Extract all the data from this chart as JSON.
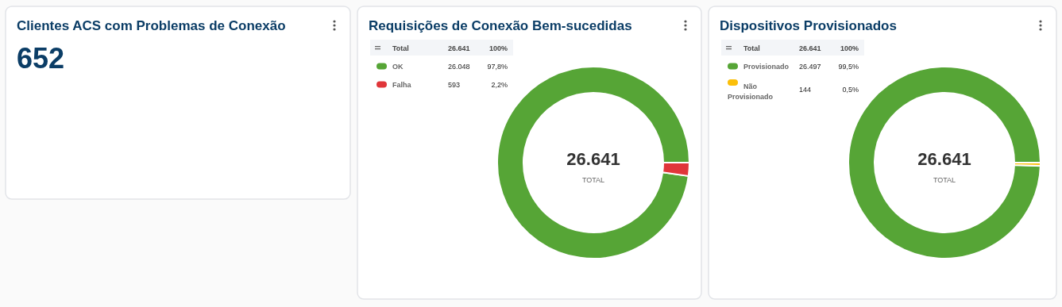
{
  "chart_data": [
    {
      "type": "other",
      "title": "Clientes ACS com Problemas de Conexão",
      "annotations": [
        "652"
      ]
    },
    {
      "type": "donut",
      "title": "Requisições de Conexão Bem-sucedidas",
      "categories": [
        "OK",
        "Falha"
      ],
      "values": [
        26048,
        593
      ],
      "colors": [
        "#56a536",
        "#e0363a"
      ],
      "value_labels": [
        "26.048",
        "593"
      ],
      "legend": "top left",
      "annotations": [
        "Total",
        "26.641",
        "100%",
        "TOTAL",
        "97,8%",
        "2,2%"
      ]
    },
    {
      "type": "donut",
      "title": "Dispositivos Provisionados",
      "categories": [
        "Provisionado",
        "Não Provisionado"
      ],
      "values": [
        26497,
        144
      ],
      "colors": [
        "#56a536",
        "#fbbf0a"
      ],
      "value_labels": [
        "26.497",
        "144"
      ],
      "legend": "top left",
      "annotations": [
        "Total",
        "26.641",
        "100%",
        "TOTAL",
        "99,5%",
        "0,5%"
      ]
    }
  ]
}
